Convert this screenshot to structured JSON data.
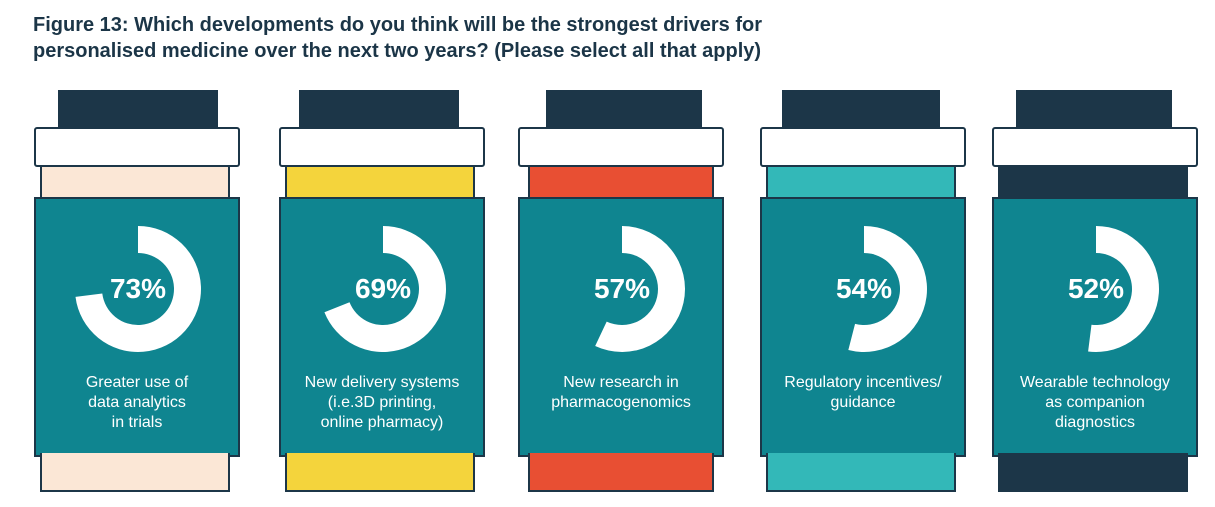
{
  "title_lines": [
    "Figure 13: Which developments do you think will be the strongest drivers for",
    "personalised medicine over the next two years? (Please select all that apply)"
  ],
  "colors": {
    "cap": "#1c3648",
    "body": "#0f8590",
    "ring": "#ffffff",
    "text_dark": "#1b3547"
  },
  "chart_data": {
    "type": "pie",
    "title": "Figure 13: Which developments do you think will be the strongest drivers for personalised medicine over the next two years? (Please select all that apply)",
    "unit": "%",
    "categories": [
      "Greater use of data analytics in trials",
      "New delivery systems (i.e.3D printing, online pharmacy)",
      "New research in pharmacogenomics",
      "Regulatory incentives/ guidance",
      "Wearable technology as companion diagnostics"
    ],
    "values": [
      73,
      69,
      57,
      54,
      52
    ],
    "items": [
      {
        "value": 73,
        "value_label": "73%",
        "label_lines": [
          "Greater use of",
          "data analytics",
          "in trials"
        ],
        "accent": "#fbe7d6"
      },
      {
        "value": 69,
        "value_label": "69%",
        "label_lines": [
          "New delivery systems",
          "(i.e.3D printing,",
          "online pharmacy)"
        ],
        "accent": "#f4d43c"
      },
      {
        "value": 57,
        "value_label": "57%",
        "label_lines": [
          "New research in",
          "pharmacogenomics"
        ],
        "accent": "#e84f33"
      },
      {
        "value": 54,
        "value_label": "54%",
        "label_lines": [
          "Regulatory incentives/",
          "guidance"
        ],
        "accent": "#33b8b8"
      },
      {
        "value": 52,
        "value_label": "52%",
        "label_lines": [
          "Wearable technology",
          "as companion",
          "diagnostics"
        ],
        "accent": "#1c3648"
      }
    ]
  }
}
